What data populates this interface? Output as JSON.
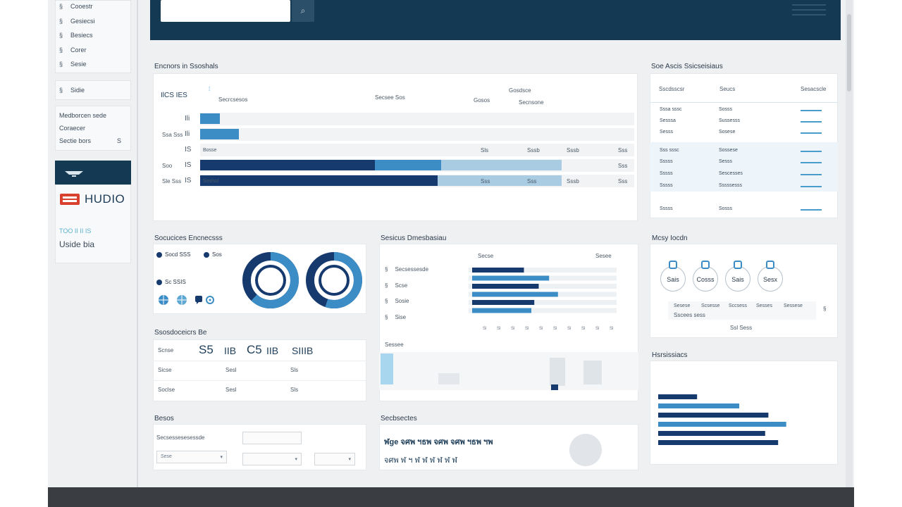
{
  "header": {
    "search_icon": "search-icon",
    "menu_icon": "hamburger-menu-icon"
  },
  "sidebar": {
    "items": [
      {
        "icon": "§",
        "label": "Cooestr"
      },
      {
        "icon": "§",
        "label": "Gesiecsi"
      },
      {
        "icon": "§",
        "label": "Besiecs"
      },
      {
        "icon": "§",
        "label": "Corer"
      },
      {
        "icon": "§",
        "label": "Sesie"
      }
    ],
    "single_item": {
      "icon": "§",
      "label": "Sidie"
    },
    "group": [
      {
        "label": "Medborcen sede",
        "badge": ""
      },
      {
        "label": "Coraecer",
        "badge": ""
      },
      {
        "label": "Sectie bors",
        "badge": "S"
      }
    ],
    "brand": "HUDIO",
    "accent_text": "TOO II II IS",
    "plain_text": "Uside bia"
  },
  "overview": {
    "title": "Encnors in Ssoshals",
    "tabs": [
      "IlCS IES",
      "Secrcsesos",
      "Secsee Sos",
      "Gosos",
      "Gosdsce",
      "Secnsone"
    ],
    "row_labels": [
      "",
      "Ssa Sss",
      "",
      "Soo",
      "Sle Sss"
    ],
    "row_ids": [
      "Ili",
      "Ili",
      "IS",
      "IS",
      "IS"
    ],
    "row_captions": [
      "",
      "",
      "Bosse",
      "",
      "Soslssl"
    ],
    "row_values": [
      [
        "",
        "",
        "",
        ""
      ],
      [
        "",
        "",
        "",
        ""
      ],
      [
        "Sls",
        "Sssb",
        "Sssb",
        "Sss"
      ],
      [
        "",
        "",
        "",
        "Sss"
      ],
      [
        "Sss",
        "Sss",
        "Sssb",
        "Sss"
      ]
    ],
    "bars": [
      {
        "dark": 0,
        "mid": 0.05,
        "light": 0
      },
      {
        "dark": 0,
        "mid": 0.1,
        "light": 0
      },
      {
        "dark": 0,
        "mid": 0,
        "light": 0
      },
      {
        "dark": 0.45,
        "mid": 0.17,
        "light": 0.31
      },
      {
        "dark": 0.61,
        "mid": 0,
        "light": 0.32
      }
    ]
  },
  "side_table": {
    "title": "Soe Ascis Ssicseisiaus",
    "headers": [
      "Sscdsscsr",
      "Seucs",
      "Sesacscle"
    ],
    "rows": [
      [
        "Sssa sssc",
        "Sosss",
        ""
      ],
      [
        "Sesssa",
        "Sussesss",
        ""
      ],
      [
        "Sesss",
        "Sosese",
        ""
      ],
      [
        "Sss sssc",
        "Sossese",
        ""
      ],
      [
        "Sssss",
        "Sesss",
        ""
      ],
      [
        "Sssss",
        "Sescesses",
        ""
      ],
      [
        "Sssss",
        "Sssssesss",
        ""
      ],
      [
        "Sssss",
        "Sosss",
        ""
      ]
    ]
  },
  "donuts": {
    "title": "Socucices Encnecsss",
    "legend": [
      "Socd SSS",
      "Sos"
    ],
    "sub": "Sc SSIS",
    "icons": [
      "globe-icon",
      "globe-icon",
      "chat-icon",
      "settings-icon"
    ],
    "rings": [
      {
        "outer": "#163a6e",
        "fill": 0.62,
        "inner": "#3c8dc6"
      },
      {
        "outer": "#163a6e",
        "fill": 0.55,
        "inner": "#3c8dc6"
      }
    ]
  },
  "session": {
    "title": "Sesicus Dmesbasiau",
    "rows": [
      "Secsessesde",
      "Scse",
      "Sosie",
      "Sise"
    ],
    "footer": "Sessee",
    "legend": [
      "Secse",
      "Sesee"
    ],
    "bars": [
      0.35,
      0.52,
      0.45,
      0.58,
      0.42,
      0.4
    ],
    "ticks": [
      "Sl",
      "Sl",
      "Sl",
      "Sl",
      "Sl",
      "Sl",
      "Sl",
      "Sl",
      "Sl",
      "Sl"
    ]
  },
  "heartbeat": {
    "title": "Ssosdoceicrs Be",
    "big": [
      "S5",
      "IIB",
      "C5",
      "IIB",
      "SIIIB"
    ],
    "col1": [
      "Scnse",
      "Sicse",
      "Soclse"
    ],
    "col2": [
      "",
      "Sesl",
      "Sesl"
    ],
    "col3": [
      "",
      "Sls",
      "Sls"
    ]
  },
  "metrics": {
    "title": "Mcsy Iocdn",
    "gauges": [
      "Sais",
      "Cosss",
      "Sais",
      "Sesx"
    ],
    "captions": [
      "Sesese",
      "Scsesse",
      "Sccsess",
      "Sesses",
      "Sessese"
    ],
    "caption2": "Sscees sess",
    "foot": "Ssl Sess"
  },
  "hist": {
    "title": "Hsrsissiacs",
    "bars": [
      {
        "value": 0.24,
        "color": "#163a6e"
      },
      {
        "value": 0.5,
        "color": "#3c8dc6"
      },
      {
        "value": 0.68,
        "color": "#163a6e"
      },
      {
        "value": 0.79,
        "color": "#3c8dc6"
      },
      {
        "value": 0.66,
        "color": "#163a6e"
      },
      {
        "value": 0.74,
        "color": "#163a6e"
      }
    ]
  },
  "forms": {
    "title": "Besos",
    "label1": "Secsessesesessde",
    "label2": "Sese",
    "placeholder1": "",
    "placeholder2": "",
    "placeholder3": ""
  },
  "symbols": {
    "title": "Secbsectes",
    "row1": "ฬge จศพ ฯธพ จศพ จศพ ฯธพ ฯพ",
    "row2": "จศพ ฬ ฯ ฬ ฬ ฬ ฬ ฬ ฬ"
  }
}
